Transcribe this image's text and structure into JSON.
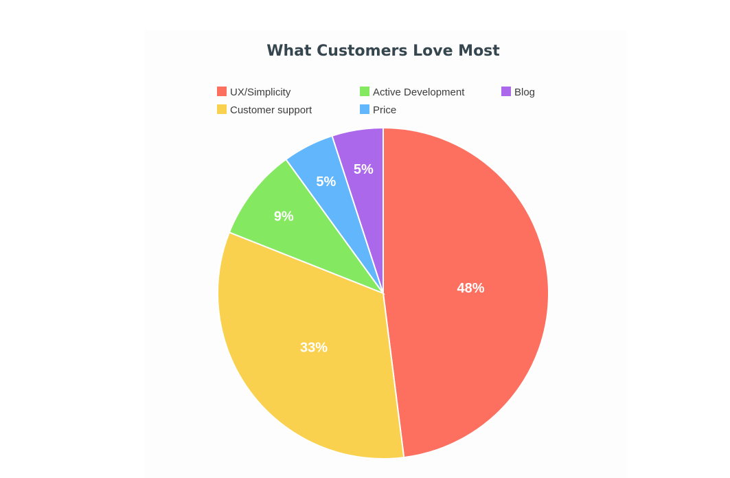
{
  "chart_data": {
    "type": "pie",
    "title": "What Customers Love Most",
    "legend_position": "top",
    "slices": [
      {
        "name": "UX/Simplicity",
        "value": 48,
        "label": "48%",
        "color": "#fd6f5f"
      },
      {
        "name": "Customer support",
        "value": 33,
        "label": "33%",
        "color": "#fad14f"
      },
      {
        "name": "Active Development",
        "value": 9,
        "label": "9%",
        "color": "#85e861"
      },
      {
        "name": "Price",
        "value": 5,
        "label": "5%",
        "color": "#62b6fb"
      },
      {
        "name": "Blog",
        "value": 5,
        "label": "5%",
        "color": "#ab68ea"
      }
    ],
    "legend_order": [
      "UX/Simplicity",
      "Active Development",
      "Blog",
      "Customer support",
      "Price"
    ]
  }
}
